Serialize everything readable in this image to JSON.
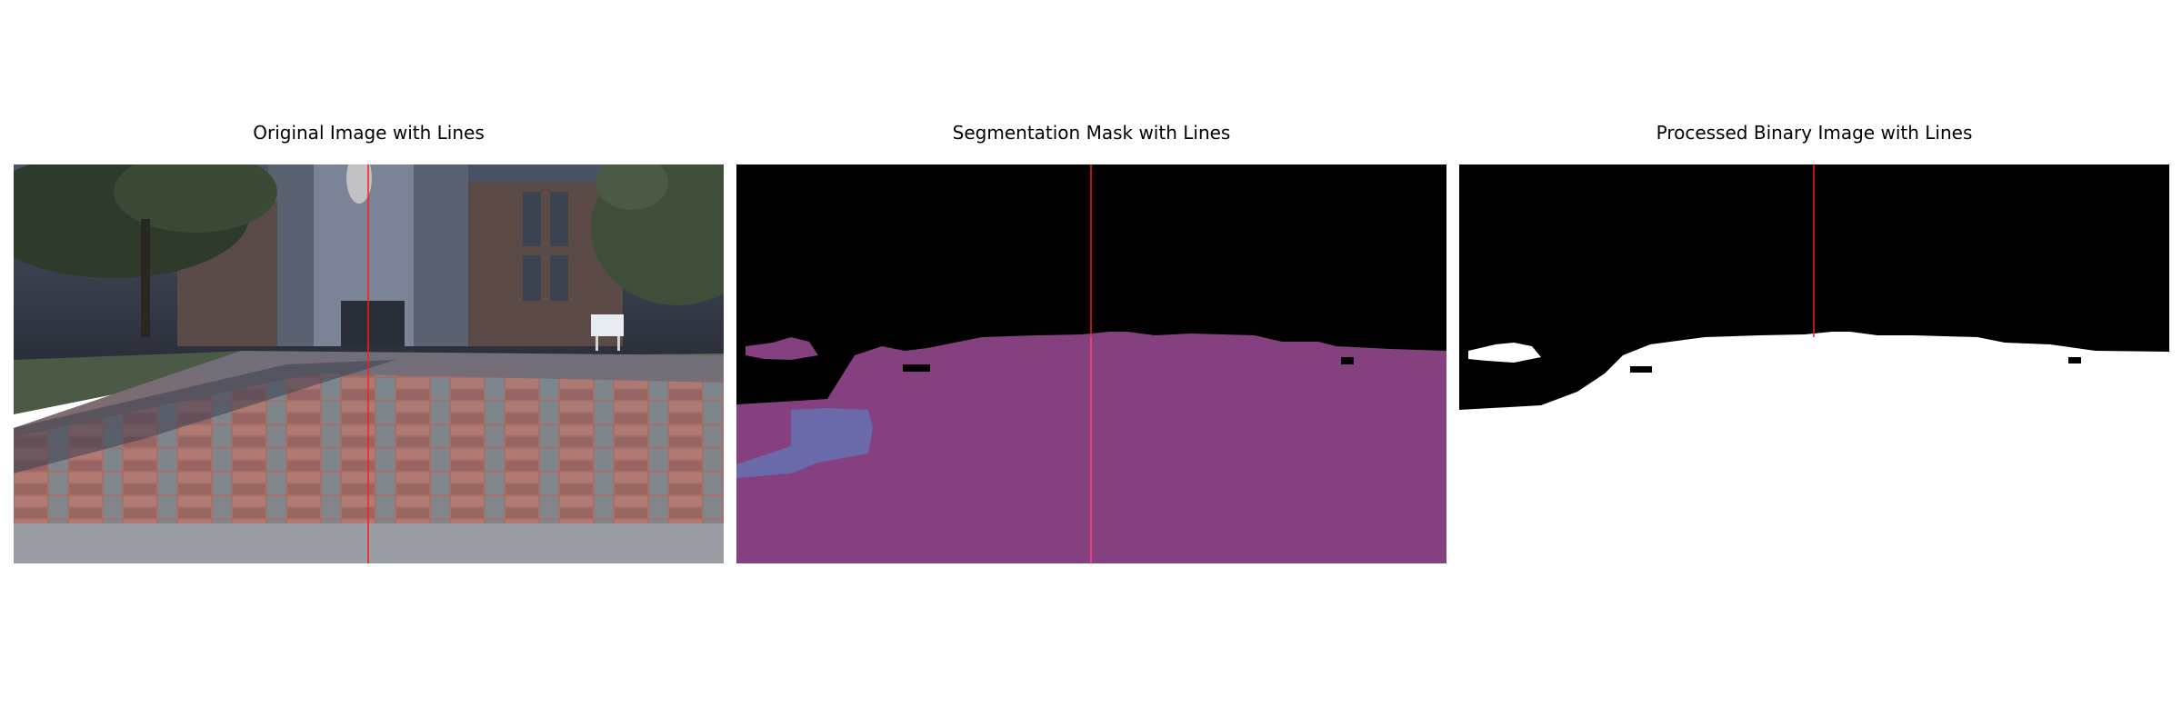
{
  "figure": {
    "panels": [
      {
        "title": "Original Image with Lines"
      },
      {
        "title": "Segmentation Mask with Lines"
      },
      {
        "title": "Processed Binary Image with Lines"
      }
    ],
    "colors": {
      "background": "#ffffff",
      "line": "#ff1a1a",
      "mask_background": "#000000",
      "mask_region": "#84407f",
      "mask_secondary_region": "#6a6aaa",
      "binary_foreground": "#ffffff",
      "binary_background": "#000000"
    }
  }
}
